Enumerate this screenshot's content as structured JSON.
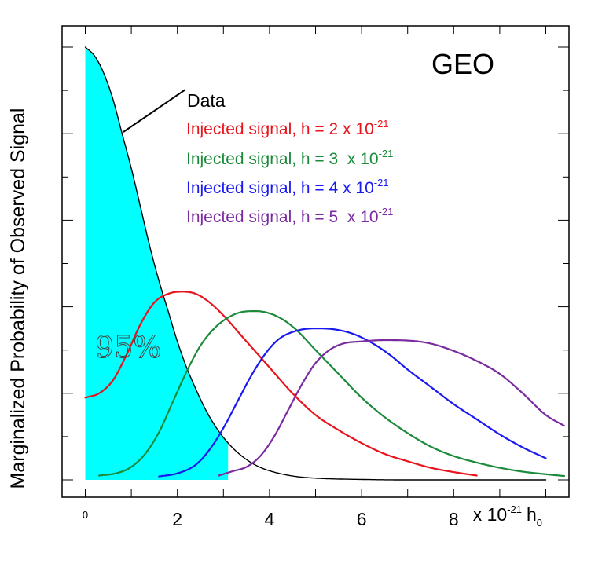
{
  "chart_data": {
    "type": "line",
    "title": "GEO",
    "ylabel": "Marginalized Probability of Observed Signal",
    "xlabel": {
      "prefix": "x 10",
      "exponent": "-21",
      "symbol": "h",
      "subscript": "0"
    },
    "xlim": [
      -0.3,
      10.4
    ],
    "ylim": [
      0,
      1.0
    ],
    "xticks": [
      {
        "value": 0,
        "label": "0"
      },
      {
        "value": 2,
        "label": "2"
      },
      {
        "value": 4,
        "label": "4"
      },
      {
        "value": 6,
        "label": "6"
      },
      {
        "value": 8,
        "label": "8"
      }
    ],
    "shaded_region": {
      "x_from": 0,
      "x_to": 3.1,
      "color": "#00ffff",
      "label": "95%"
    },
    "series": [
      {
        "name": "Data",
        "color": "#000000",
        "x": [
          0,
          0.2,
          0.4,
          0.6,
          0.8,
          1.0,
          1.2,
          1.4,
          1.6,
          1.8,
          2.0,
          2.2,
          2.4,
          2.6,
          2.8,
          3.0,
          3.2,
          3.4,
          3.6,
          3.8,
          4.0,
          4.5,
          5.0,
          6.0,
          7.0,
          8.0,
          9.0,
          10.0
        ],
        "y": [
          1.0,
          0.98,
          0.94,
          0.88,
          0.8,
          0.72,
          0.63,
          0.54,
          0.46,
          0.39,
          0.32,
          0.26,
          0.21,
          0.165,
          0.128,
          0.098,
          0.074,
          0.055,
          0.04,
          0.029,
          0.021,
          0.009,
          0.004,
          0.001,
          0.0,
          0.0,
          0.0,
          0.0
        ]
      },
      {
        "name": "Injected signal, h = 2 x 10-21",
        "legend_prefix": "Injected signal, h = 2 x 10",
        "legend_exp": "-21",
        "color": "#e8131c",
        "x": [
          0,
          0.3,
          0.6,
          0.9,
          1.2,
          1.5,
          1.8,
          2.1,
          2.4,
          2.7,
          3.0,
          3.5,
          4.0,
          4.5,
          5.0,
          5.5,
          6.0,
          6.5,
          7.0,
          7.5,
          8.0,
          8.5
        ],
        "y": [
          0.19,
          0.2,
          0.23,
          0.29,
          0.36,
          0.41,
          0.43,
          0.435,
          0.43,
          0.41,
          0.38,
          0.32,
          0.26,
          0.2,
          0.15,
          0.115,
          0.085,
          0.06,
          0.043,
          0.028,
          0.018,
          0.01
        ]
      },
      {
        "name": "Injected signal, h = 3  x 10-21",
        "legend_prefix": "Injected signal, h = 3  x 10",
        "legend_exp": "-21",
        "color": "#1b8a3a",
        "x": [
          0.3,
          0.7,
          1.0,
          1.3,
          1.6,
          1.9,
          2.2,
          2.5,
          2.8,
          3.1,
          3.4,
          3.7,
          4.0,
          4.3,
          4.6,
          5.0,
          5.5,
          6.0,
          6.5,
          7.0,
          7.5,
          8.0,
          8.5,
          9.0,
          9.5,
          10.0,
          10.4
        ],
        "y": [
          0.01,
          0.016,
          0.03,
          0.06,
          0.11,
          0.18,
          0.25,
          0.31,
          0.35,
          0.375,
          0.388,
          0.39,
          0.385,
          0.37,
          0.345,
          0.3,
          0.245,
          0.19,
          0.145,
          0.108,
          0.077,
          0.055,
          0.04,
          0.028,
          0.019,
          0.013,
          0.009
        ]
      },
      {
        "name": "Injected signal, h = 4 x 10-21",
        "legend_prefix": "Injected signal, h = 4 x 10",
        "legend_exp": "-21",
        "color": "#1a1af0",
        "x": [
          1.6,
          2.0,
          2.4,
          2.7,
          3.0,
          3.3,
          3.6,
          3.9,
          4.2,
          4.6,
          5.0,
          5.4,
          5.8,
          6.2,
          6.6,
          7.0,
          7.5,
          8.0,
          8.5,
          9.0,
          9.5,
          10.0
        ],
        "y": [
          0.008,
          0.015,
          0.035,
          0.07,
          0.12,
          0.18,
          0.24,
          0.29,
          0.325,
          0.345,
          0.35,
          0.348,
          0.338,
          0.318,
          0.29,
          0.255,
          0.215,
          0.175,
          0.14,
          0.105,
          0.075,
          0.05
        ]
      },
      {
        "name": "Injected signal, h = 5  x 10-21",
        "legend_prefix": "Injected signal, h = 5  x 10",
        "legend_exp": "-21",
        "color": "#7a2ba0",
        "x": [
          2.9,
          3.2,
          3.5,
          3.8,
          4.1,
          4.4,
          4.7,
          5.0,
          5.3,
          5.6,
          6.0,
          6.5,
          7.0,
          7.5,
          8.0,
          8.5,
          9.0,
          9.5,
          10.0,
          10.4
        ],
        "y": [
          0.01,
          0.02,
          0.03,
          0.055,
          0.1,
          0.16,
          0.22,
          0.27,
          0.3,
          0.315,
          0.32,
          0.323,
          0.322,
          0.315,
          0.298,
          0.275,
          0.245,
          0.2,
          0.15,
          0.125
        ]
      }
    ]
  }
}
